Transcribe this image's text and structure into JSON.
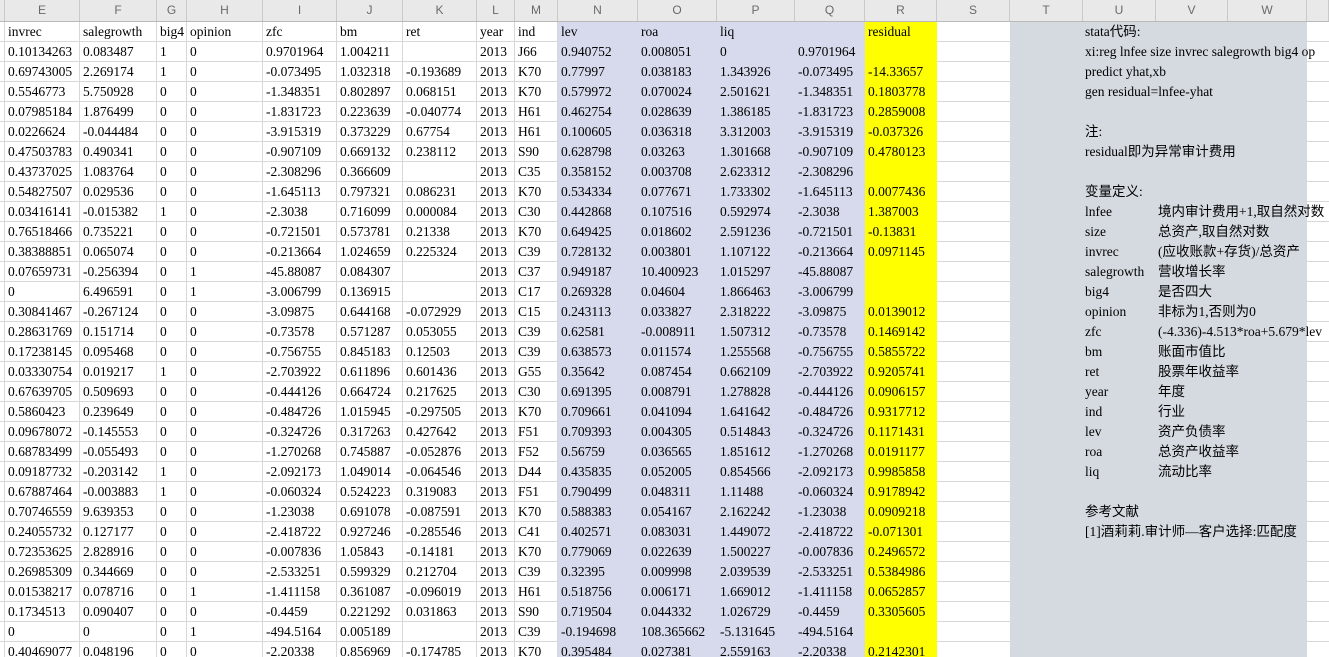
{
  "colors": {
    "highlight_yellow": "#ffff00",
    "band_lavender": "#d6daec",
    "panel_gray": "#d5dae1",
    "header_gray": "#e9e9e9"
  },
  "sheet": {
    "column_letters": [
      "E",
      "F",
      "G",
      "H",
      "I",
      "J",
      "K",
      "L",
      "M",
      "N",
      "O",
      "P",
      "Q",
      "R",
      "S",
      "T",
      "U",
      "V",
      "W"
    ],
    "header_row": [
      "invrec",
      "salegrowth",
      "big4",
      "opinion",
      "zfc",
      "bm",
      "ret",
      "year",
      "ind",
      "lev",
      "roa",
      "liq",
      "",
      "residual"
    ],
    "rows": [
      [
        "0.10134263",
        "0.083487",
        "1",
        "0",
        "0.9701964",
        "1.004211",
        "",
        "2013",
        "J66",
        "0.940752",
        "0.008051",
        "0",
        "0.9701964",
        ""
      ],
      [
        "0.69743005",
        "2.269174",
        "1",
        "0",
        "-0.073495",
        "1.032318",
        "-0.193689",
        "2013",
        "K70",
        "0.77997",
        "0.038183",
        "1.343926",
        "-0.073495",
        "-14.33657"
      ],
      [
        "0.5546773",
        "5.750928",
        "0",
        "0",
        "-1.348351",
        "0.802897",
        "0.068151",
        "2013",
        "K70",
        "0.579972",
        "0.070024",
        "2.501621",
        "-1.348351",
        "0.1803778"
      ],
      [
        "0.07985184",
        "1.876499",
        "0",
        "0",
        "-1.831723",
        "0.223639",
        "-0.040774",
        "2013",
        "H61",
        "0.462754",
        "0.028639",
        "1.386185",
        "-1.831723",
        "0.2859008"
      ],
      [
        "0.0226624",
        "-0.044484",
        "0",
        "0",
        "-3.915319",
        "0.373229",
        "0.67754",
        "2013",
        "H61",
        "0.100605",
        "0.036318",
        "3.312003",
        "-3.915319",
        "-0.037326"
      ],
      [
        "0.47503783",
        "0.490341",
        "0",
        "0",
        "-0.907109",
        "0.669132",
        "0.238112",
        "2013",
        "S90",
        "0.628798",
        "0.03263",
        "1.301668",
        "-0.907109",
        "0.4780123"
      ],
      [
        "0.43737025",
        "1.083764",
        "0",
        "0",
        "-2.308296",
        "0.366609",
        "",
        "2013",
        "C35",
        "0.358152",
        "0.003708",
        "2.623312",
        "-2.308296",
        ""
      ],
      [
        "0.54827507",
        "0.029536",
        "0",
        "0",
        "-1.645113",
        "0.797321",
        "0.086231",
        "2013",
        "K70",
        "0.534334",
        "0.077671",
        "1.733302",
        "-1.645113",
        "0.0077436"
      ],
      [
        "0.03416141",
        "-0.015382",
        "1",
        "0",
        "-2.3038",
        "0.716099",
        "0.000084",
        "2013",
        "C30",
        "0.442868",
        "0.107516",
        "0.592974",
        "-2.3038",
        "1.387003"
      ],
      [
        "0.76518466",
        "0.735221",
        "0",
        "0",
        "-0.721501",
        "0.573781",
        "0.21338",
        "2013",
        "K70",
        "0.649425",
        "0.018602",
        "2.591236",
        "-0.721501",
        "-0.13831"
      ],
      [
        "0.38388851",
        "0.065074",
        "0",
        "0",
        "-0.213664",
        "1.024659",
        "0.225324",
        "2013",
        "C39",
        "0.728132",
        "0.003801",
        "1.107122",
        "-0.213664",
        "0.0971145"
      ],
      [
        "0.07659731",
        "-0.256394",
        "0",
        "1",
        "-45.88087",
        "0.084307",
        "",
        "2013",
        "C37",
        "0.949187",
        "10.400923",
        "1.015297",
        "-45.88087",
        ""
      ],
      [
        "0",
        "6.496591",
        "0",
        "1",
        "-3.006799",
        "0.136915",
        "",
        "2013",
        "C17",
        "0.269328",
        "0.04604",
        "1.866463",
        "-3.006799",
        ""
      ],
      [
        "0.30841467",
        "-0.267124",
        "0",
        "0",
        "-3.09875",
        "0.644168",
        "-0.072929",
        "2013",
        "C15",
        "0.243113",
        "0.033827",
        "2.318222",
        "-3.09875",
        "0.0139012"
      ],
      [
        "0.28631769",
        "0.151714",
        "0",
        "0",
        "-0.73578",
        "0.571287",
        "0.053055",
        "2013",
        "C39",
        "0.62581",
        "-0.008911",
        "1.507312",
        "-0.73578",
        "0.1469142"
      ],
      [
        "0.17238145",
        "0.095468",
        "0",
        "0",
        "-0.756755",
        "0.845183",
        "0.12503",
        "2013",
        "C39",
        "0.638573",
        "0.011574",
        "1.255568",
        "-0.756755",
        "0.5855722"
      ],
      [
        "0.03330754",
        "0.019217",
        "1",
        "0",
        "-2.703922",
        "0.611896",
        "0.601436",
        "2013",
        "G55",
        "0.35642",
        "0.087454",
        "0.662109",
        "-2.703922",
        "0.9205741"
      ],
      [
        "0.67639705",
        "0.509693",
        "0",
        "0",
        "-0.444126",
        "0.664724",
        "0.217625",
        "2013",
        "C30",
        "0.691395",
        "0.008791",
        "1.278828",
        "-0.444126",
        "0.0906157"
      ],
      [
        "0.5860423",
        "0.239649",
        "0",
        "0",
        "-0.484726",
        "1.015945",
        "-0.297505",
        "2013",
        "K70",
        "0.709661",
        "0.041094",
        "1.641642",
        "-0.484726",
        "0.9317712"
      ],
      [
        "0.09678072",
        "-0.145553",
        "0",
        "0",
        "-0.324726",
        "0.317263",
        "0.427642",
        "2013",
        "F51",
        "0.709393",
        "0.004305",
        "0.514843",
        "-0.324726",
        "0.1171431"
      ],
      [
        "0.68783499",
        "-0.055493",
        "0",
        "0",
        "-1.270268",
        "0.745887",
        "-0.052876",
        "2013",
        "F52",
        "0.56759",
        "0.036565",
        "1.851612",
        "-1.270268",
        "0.0191177"
      ],
      [
        "0.09187732",
        "-0.203142",
        "1",
        "0",
        "-2.092173",
        "1.049014",
        "-0.064546",
        "2013",
        "D44",
        "0.435835",
        "0.052005",
        "0.854566",
        "-2.092173",
        "0.9985858"
      ],
      [
        "0.67887464",
        "-0.003883",
        "1",
        "0",
        "-0.060324",
        "0.524223",
        "0.319083",
        "2013",
        "F51",
        "0.790499",
        "0.048311",
        "1.11488",
        "-0.060324",
        "0.9178942"
      ],
      [
        "0.70746559",
        "9.639353",
        "0",
        "0",
        "-1.23038",
        "0.691078",
        "-0.087591",
        "2013",
        "K70",
        "0.588383",
        "0.054167",
        "2.162242",
        "-1.23038",
        "0.0909218"
      ],
      [
        "0.24055732",
        "0.127177",
        "0",
        "0",
        "-2.418722",
        "0.927246",
        "-0.285546",
        "2013",
        "C41",
        "0.402571",
        "0.083031",
        "1.449072",
        "-2.418722",
        "-0.071301"
      ],
      [
        "0.72353625",
        "2.828916",
        "0",
        "0",
        "-0.007836",
        "1.05843",
        "-0.14181",
        "2013",
        "K70",
        "0.779069",
        "0.022639",
        "1.500227",
        "-0.007836",
        "0.2496572"
      ],
      [
        "0.26985309",
        "0.344669",
        "0",
        "0",
        "-2.533251",
        "0.599329",
        "0.212704",
        "2013",
        "C39",
        "0.32395",
        "0.009998",
        "2.039539",
        "-2.533251",
        "0.5384986"
      ],
      [
        "0.01538217",
        "0.078716",
        "0",
        "1",
        "-1.411158",
        "0.361087",
        "-0.096019",
        "2013",
        "H61",
        "0.518756",
        "0.006171",
        "1.669012",
        "-1.411158",
        "0.0652857"
      ],
      [
        "0.1734513",
        "0.090407",
        "0",
        "0",
        "-0.4459",
        "0.221292",
        "0.031863",
        "2013",
        "S90",
        "0.719504",
        "0.044332",
        "1.026729",
        "-0.4459",
        "0.3305605"
      ],
      [
        "0",
        "0",
        "0",
        "1",
        "-494.5164",
        "0.005189",
        "",
        "2013",
        "C39",
        "-0.194698",
        "108.365662",
        "-5.131645",
        "-494.5164",
        ""
      ],
      [
        "0.40469077",
        "0.048196",
        "0",
        "0",
        "-2.20338",
        "0.856969",
        "-0.174785",
        "2013",
        "K70",
        "0.395484",
        "0.027381",
        "2.559163",
        "-2.20338",
        "0.2142301"
      ]
    ]
  },
  "panel": {
    "title": "stata代码:",
    "code_lines": [
      "xi:reg lnfee size invrec salegrowth big4 op",
      "predict yhat,xb",
      "gen residual=lnfee-yhat"
    ],
    "note_label": "注:",
    "note": "residual即为异常审计费用",
    "defs_title": "变量定义:",
    "definitions": [
      {
        "term": "lnfee",
        "def": "境内审计费用+1,取自然对数"
      },
      {
        "term": "size",
        "def": "总资产,取自然对数"
      },
      {
        "term": "invrec",
        "def": "(应收账款+存货)/总资产"
      },
      {
        "term": "salegrowth",
        "def": "营收增长率"
      },
      {
        "term": "big4",
        "def": "是否四大"
      },
      {
        "term": "opinion",
        "def": "非标为1,否则为0"
      },
      {
        "term": "zfc",
        "def": "(-4.336)-4.513*roa+5.679*lev"
      },
      {
        "term": "bm",
        "def": "账面市值比"
      },
      {
        "term": "ret",
        "def": "股票年收益率"
      },
      {
        "term": "year",
        "def": "年度"
      },
      {
        "term": "ind",
        "def": "行业"
      },
      {
        "term": "lev",
        "def": "资产负债率"
      },
      {
        "term": "roa",
        "def": "总资产收益率"
      },
      {
        "term": "liq",
        "def": "流动比率"
      }
    ],
    "refs_title": "参考文献",
    "reference": "[1]酒莉莉.审计师—客户选择:匹配度"
  }
}
